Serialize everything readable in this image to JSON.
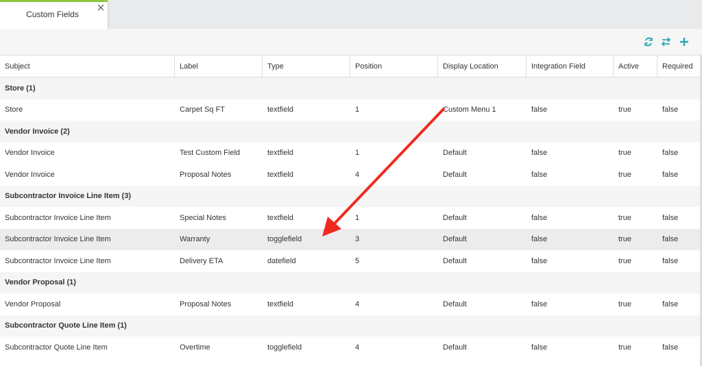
{
  "tab": {
    "title": "Custom Fields"
  },
  "table": {
    "columns": [
      "Subject",
      "Label",
      "Type",
      "Position",
      "Display Location",
      "Integration Field",
      "Active",
      "Required"
    ],
    "groups": [
      {
        "title": "Store (1)",
        "rows": [
          [
            "Store",
            "Carpet Sq FT",
            "textfield",
            "1",
            "Custom Menu 1",
            "false",
            "true",
            "false"
          ]
        ]
      },
      {
        "title": "Vendor Invoice (2)",
        "rows": [
          [
            "Vendor Invoice",
            "Test Custom Field",
            "textfield",
            "1",
            "Default",
            "false",
            "true",
            "false"
          ],
          [
            "Vendor Invoice",
            "Proposal Notes",
            "textfield",
            "4",
            "Default",
            "false",
            "true",
            "false"
          ]
        ]
      },
      {
        "title": "Subcontractor Invoice Line Item (3)",
        "rows": [
          [
            "Subcontractor Invoice Line Item",
            "Special Notes",
            "textfield",
            "1",
            "Default",
            "false",
            "true",
            "false"
          ],
          [
            "Subcontractor Invoice Line Item",
            "Warranty",
            "togglefield",
            "3",
            "Default",
            "false",
            "true",
            "false"
          ],
          [
            "Subcontractor Invoice Line Item",
            "Delivery ETA",
            "datefield",
            "5",
            "Default",
            "false",
            "true",
            "false"
          ]
        ]
      },
      {
        "title": "Vendor Proposal (1)",
        "rows": [
          [
            "Vendor Proposal",
            "Proposal Notes",
            "textfield",
            "4",
            "Default",
            "false",
            "true",
            "false"
          ]
        ]
      },
      {
        "title": "Subcontractor Quote Line Item (1)",
        "rows": [
          [
            "Subcontractor Quote Line Item",
            "Overtime",
            "togglefield",
            "4",
            "Default",
            "false",
            "true",
            "false"
          ]
        ]
      }
    ]
  }
}
